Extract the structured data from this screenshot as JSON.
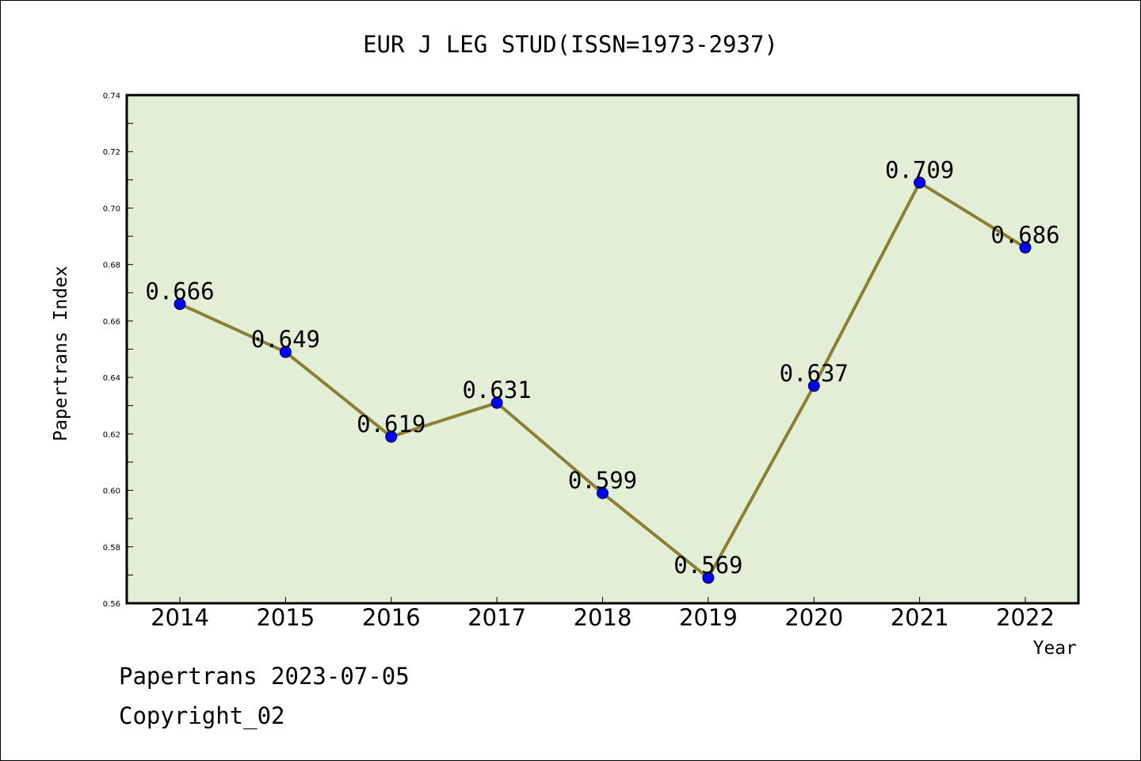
{
  "chart_data": {
    "type": "line",
    "title": "EUR J LEG STUD(ISSN=1973-2937)",
    "xlabel": "Year",
    "ylabel": "Papertrans Index",
    "categories": [
      "2014",
      "2015",
      "2016",
      "2017",
      "2018",
      "2019",
      "2020",
      "2021",
      "2022"
    ],
    "values": [
      0.666,
      0.649,
      0.619,
      0.631,
      0.599,
      0.569,
      0.637,
      0.709,
      0.686
    ],
    "data_labels": [
      "0.666",
      "0.649",
      "0.619",
      "0.631",
      "0.599",
      "0.569",
      "0.637",
      "0.709",
      "0.686"
    ],
    "ylim": [
      0.56,
      0.74
    ],
    "yticks": [
      "0.56",
      "0.58",
      "0.60",
      "0.62",
      "0.64",
      "0.66",
      "0.68",
      "0.70",
      "0.72",
      "0.74"
    ],
    "grid": false,
    "colors": {
      "plot_background": "#e2efd6",
      "line": "#8c7e32",
      "marker": "#0000ff"
    }
  },
  "footer": {
    "line1": "Papertrans 2023-07-05",
    "line2": "Copyright_02"
  }
}
